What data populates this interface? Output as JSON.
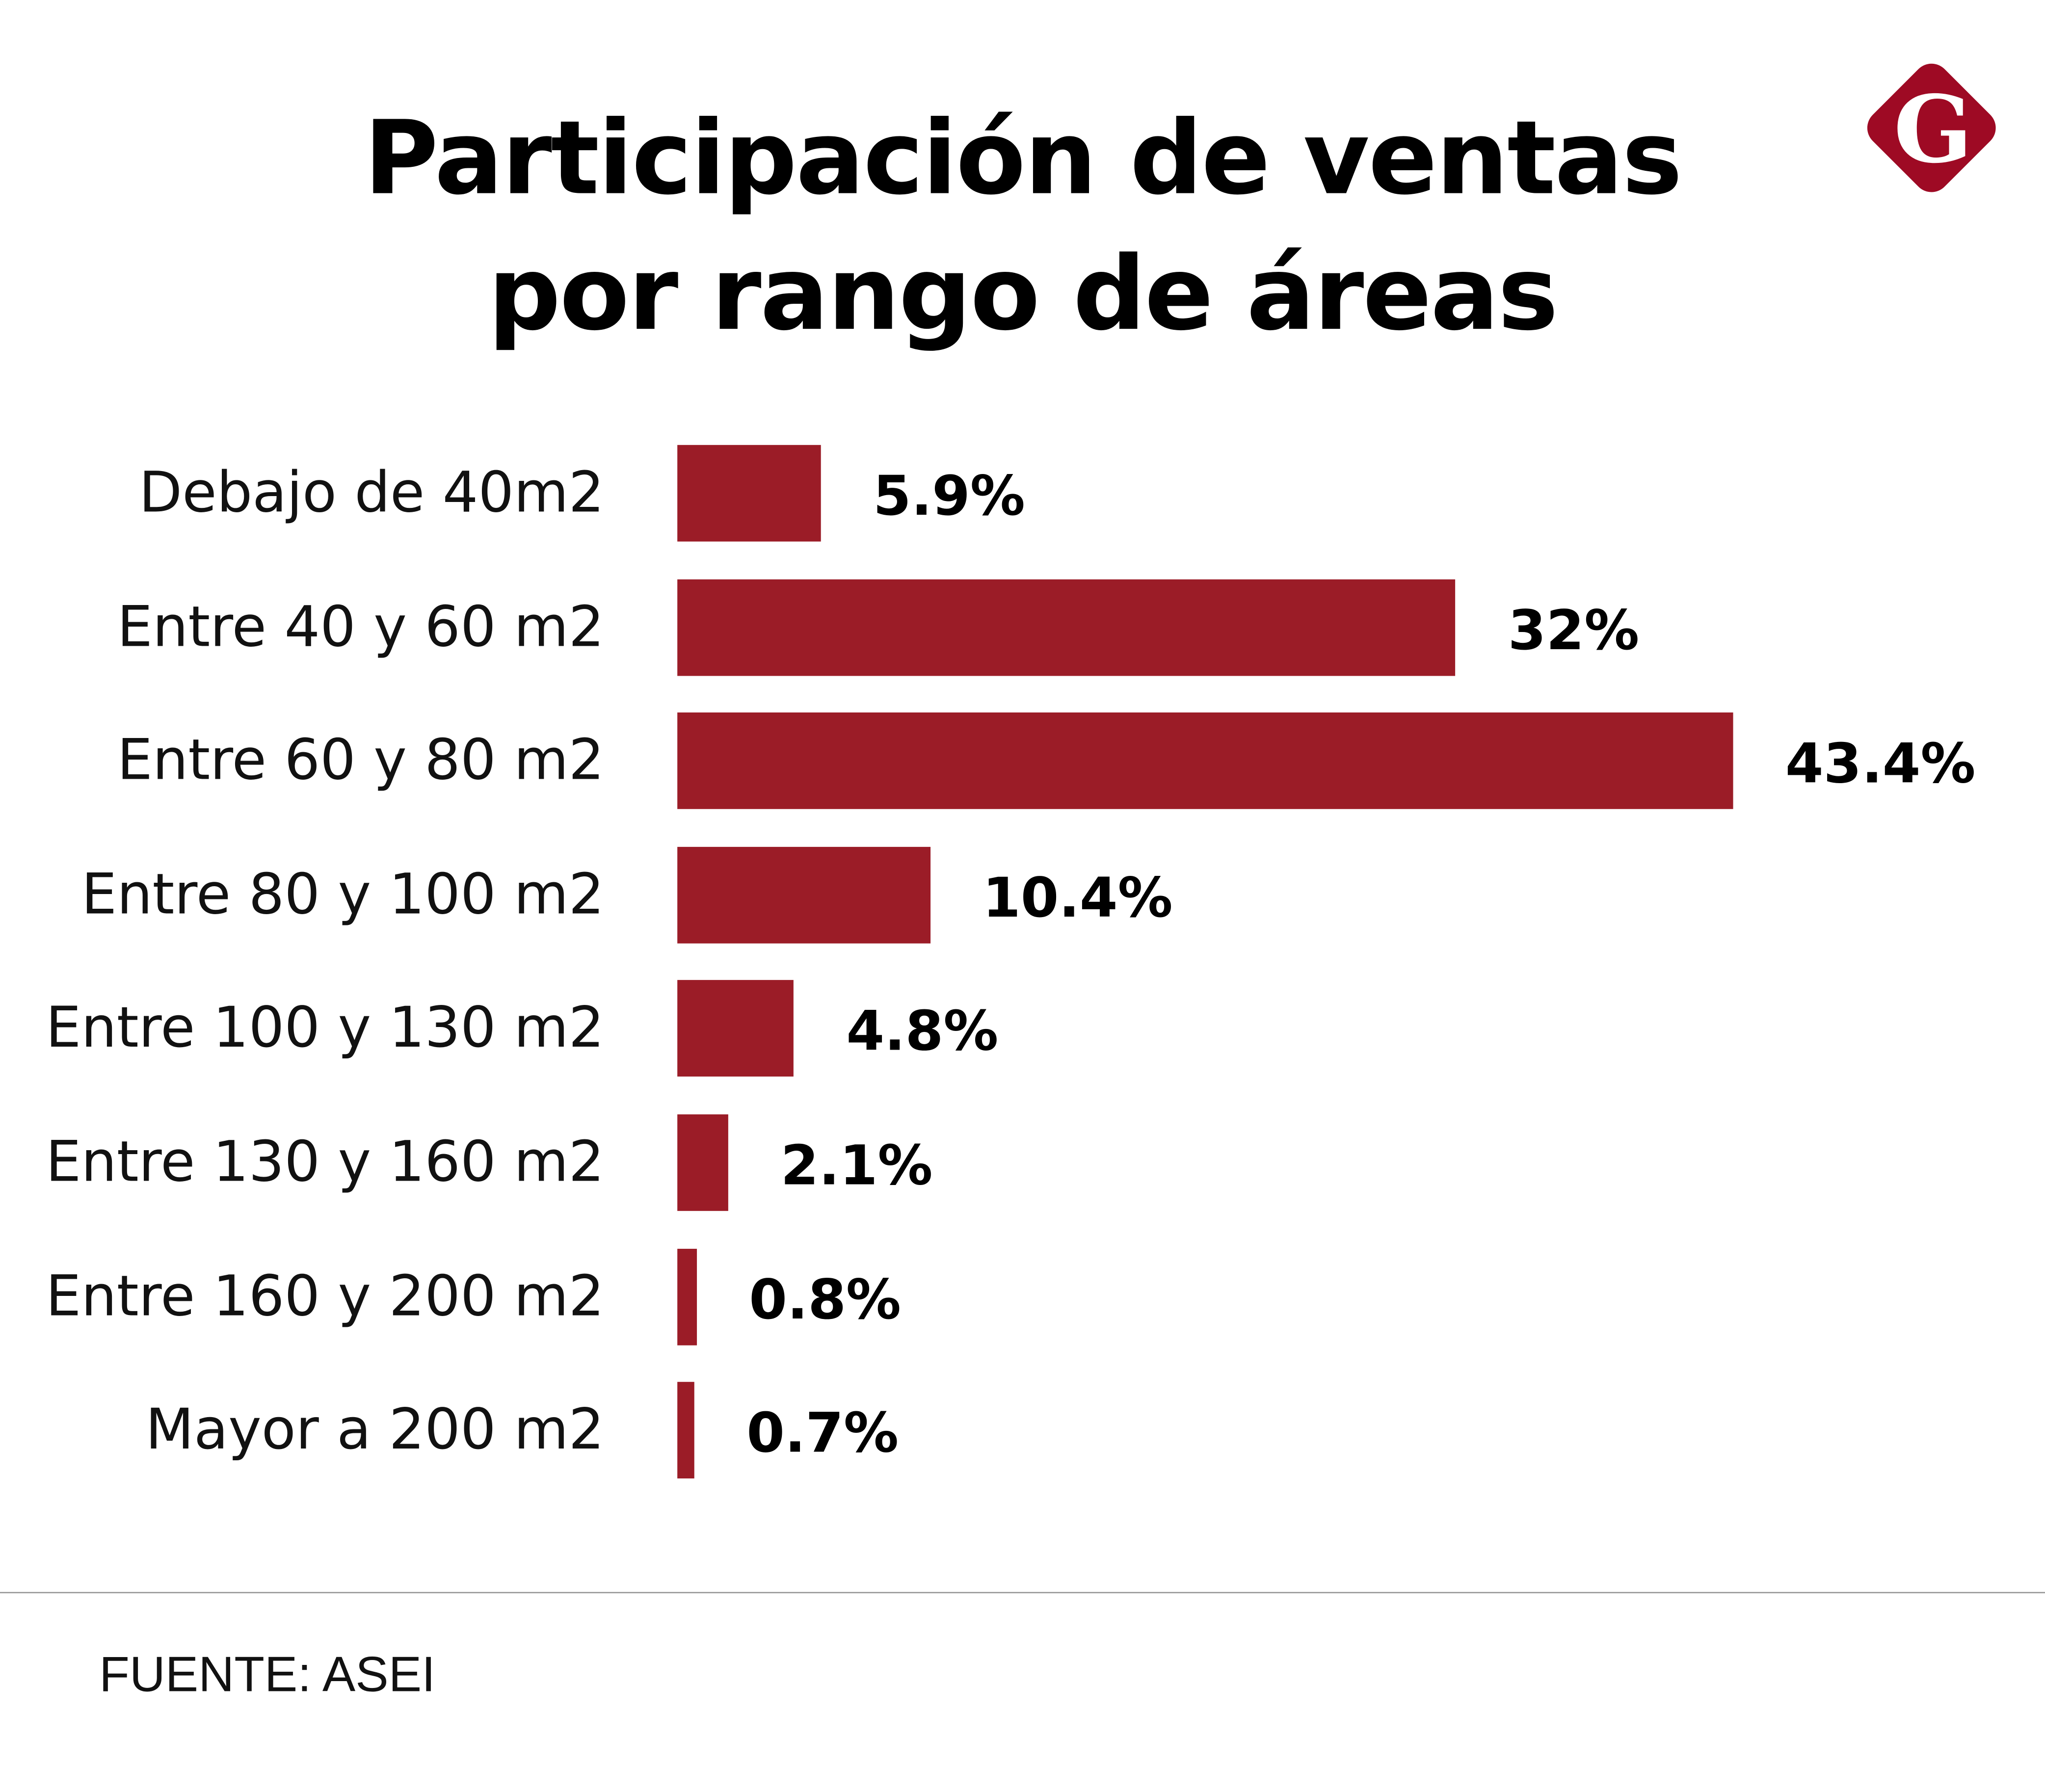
{
  "chart_data": {
    "type": "bar",
    "orientation": "horizontal",
    "title": "Participación de ventas por rango de áreas",
    "title_lines": [
      "Participación de ventas",
      "por rango de áreas"
    ],
    "categories": [
      "Debajo de 40m2",
      "Entre 40 y 60 m2",
      "Entre 60 y 80 m2",
      "Entre 80 y 100 m2",
      "Entre 100 y 130 m2",
      "Entre 130 y 160 m2",
      "Entre 160 y 200 m2",
      "Mayor a 200 m2"
    ],
    "values": [
      5.9,
      32,
      43.4,
      10.4,
      4.8,
      2.1,
      0.8,
      0.7
    ],
    "data_labels": [
      "5.9%",
      "32%",
      "43.4%",
      "10.4%",
      "4.8%",
      "2.1%",
      "0.8%",
      "0.7%"
    ],
    "xlim": [
      0,
      43.4
    ],
    "grid": false,
    "bar_color": "#9b1c27"
  },
  "source": "FUENTE: ASEI",
  "logo": {
    "letter": "G",
    "color": "#9e0a24"
  }
}
